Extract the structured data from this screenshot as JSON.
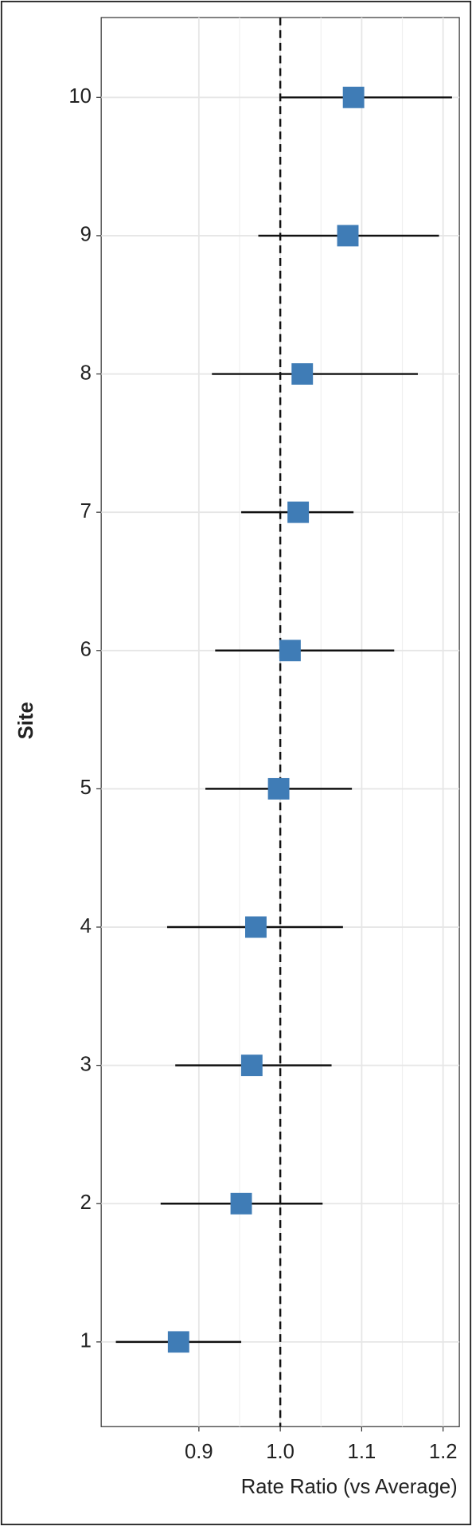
{
  "chart_data": {
    "type": "forest",
    "x_label": "Rate Ratio (vs Average)",
    "y_label": "Site",
    "categories": [
      "1",
      "2",
      "3",
      "4",
      "5",
      "6",
      "7",
      "8",
      "9",
      "10"
    ],
    "values": [
      0.875,
      0.952,
      0.965,
      0.97,
      0.998,
      1.012,
      1.022,
      1.027,
      1.083,
      1.09
    ],
    "lower": [
      0.798,
      0.853,
      0.871,
      0.861,
      0.908,
      0.92,
      0.952,
      0.916,
      0.973,
      1.001
    ],
    "upper": [
      0.952,
      1.052,
      1.063,
      1.077,
      1.088,
      1.14,
      1.09,
      1.169,
      1.195,
      1.211
    ],
    "color": "#3f7cb6",
    "xlim": [
      0.78,
      1.22
    ],
    "xticks": [
      0.9,
      {
        "value": 1,
        "label": "1.0"
      },
      1.1,
      1.2
    ],
    "ref_line": 1,
    "grid": true
  }
}
